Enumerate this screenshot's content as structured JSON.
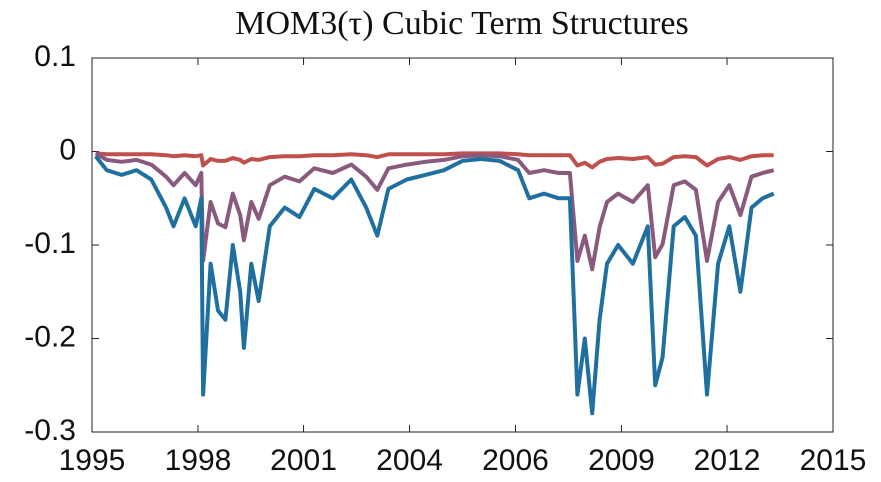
{
  "chart_data": {
    "type": "line",
    "title": "MOM3(τ) Cubic Term Structures",
    "x": [
      1995.1,
      1995.4,
      1995.8,
      1996.2,
      1996.6,
      1997.0,
      1997.2,
      1997.5,
      1997.8,
      1997.95,
      1998.0,
      1998.2,
      1998.4,
      1998.6,
      1998.8,
      1999.0,
      1999.1,
      1999.3,
      1999.5,
      1999.8,
      2000.2,
      2000.6,
      2001.0,
      2001.5,
      2002.0,
      2002.4,
      2002.7,
      2003.0,
      2003.5,
      2004.0,
      2004.5,
      2005.0,
      2005.5,
      2006.0,
      2006.5,
      2006.8,
      2007.2,
      2007.6,
      2007.9,
      2008.1,
      2008.3,
      2008.5,
      2008.7,
      2008.9,
      2009.2,
      2009.6,
      2010.0,
      2010.2,
      2010.4,
      2010.7,
      2011.0,
      2011.3,
      2011.6,
      2011.9,
      2012.2,
      2012.5,
      2012.8,
      2013.1,
      2013.4
    ],
    "series": [
      {
        "color": "#c0504d",
        "values": [
          -0.002,
          -0.003,
          -0.003,
          -0.003,
          -0.003,
          -0.004,
          -0.005,
          -0.004,
          -0.005,
          -0.004,
          -0.015,
          -0.008,
          -0.01,
          -0.01,
          -0.007,
          -0.009,
          -0.012,
          -0.008,
          -0.009,
          -0.006,
          -0.005,
          -0.005,
          -0.004,
          -0.004,
          -0.003,
          -0.004,
          -0.006,
          -0.003,
          -0.003,
          -0.003,
          -0.003,
          -0.002,
          -0.002,
          -0.002,
          -0.003,
          -0.004,
          -0.004,
          -0.004,
          -0.004,
          -0.015,
          -0.012,
          -0.017,
          -0.011,
          -0.008,
          -0.007,
          -0.008,
          -0.006,
          -0.014,
          -0.013,
          -0.006,
          -0.005,
          -0.006,
          -0.015,
          -0.008,
          -0.006,
          -0.009,
          -0.005,
          -0.004,
          -0.004
        ]
      },
      {
        "color": "#8a5a7e",
        "values": [
          -0.002,
          -0.009,
          -0.011,
          -0.009,
          -0.014,
          -0.027,
          -0.036,
          -0.023,
          -0.036,
          -0.023,
          -0.117,
          -0.054,
          -0.077,
          -0.081,
          -0.045,
          -0.068,
          -0.095,
          -0.054,
          -0.072,
          -0.036,
          -0.027,
          -0.032,
          -0.018,
          -0.023,
          -0.014,
          -0.027,
          -0.041,
          -0.018,
          -0.014,
          -0.011,
          -0.009,
          -0.005,
          -0.004,
          -0.005,
          -0.009,
          -0.023,
          -0.02,
          -0.023,
          -0.023,
          -0.117,
          -0.09,
          -0.126,
          -0.081,
          -0.054,
          -0.045,
          -0.054,
          -0.036,
          -0.113,
          -0.099,
          -0.036,
          -0.032,
          -0.041,
          -0.117,
          -0.054,
          -0.036,
          -0.068,
          -0.027,
          -0.023,
          -0.02
        ]
      },
      {
        "color": "#1f6f9f",
        "values": [
          -0.005,
          -0.02,
          -0.025,
          -0.02,
          -0.03,
          -0.06,
          -0.08,
          -0.05,
          -0.08,
          -0.05,
          -0.26,
          -0.12,
          -0.17,
          -0.18,
          -0.1,
          -0.15,
          -0.21,
          -0.12,
          -0.16,
          -0.08,
          -0.06,
          -0.07,
          -0.04,
          -0.05,
          -0.03,
          -0.06,
          -0.09,
          -0.04,
          -0.03,
          -0.025,
          -0.02,
          -0.01,
          -0.008,
          -0.01,
          -0.02,
          -0.05,
          -0.045,
          -0.05,
          -0.05,
          -0.26,
          -0.2,
          -0.28,
          -0.18,
          -0.12,
          -0.1,
          -0.12,
          -0.08,
          -0.25,
          -0.22,
          -0.08,
          -0.07,
          -0.09,
          -0.26,
          -0.12,
          -0.08,
          -0.15,
          -0.06,
          -0.05,
          -0.045
        ]
      }
    ],
    "xlim": [
      1995,
      2015
    ],
    "xticks": [
      {
        "value": 1995,
        "label": "1995"
      },
      {
        "value": 1997.86,
        "label": "1998"
      },
      {
        "value": 2000.71,
        "label": "2001"
      },
      {
        "value": 2003.57,
        "label": "2004"
      },
      {
        "value": 2006.43,
        "label": "2006"
      },
      {
        "value": 2009.29,
        "label": "2009"
      },
      {
        "value": 2012.14,
        "label": "2012"
      },
      {
        "value": 2015,
        "label": "2015"
      }
    ],
    "ylim": [
      -0.3,
      0.1
    ],
    "yticks": [
      0.1,
      0,
      -0.1,
      -0.2,
      -0.3
    ],
    "grid": false
  }
}
